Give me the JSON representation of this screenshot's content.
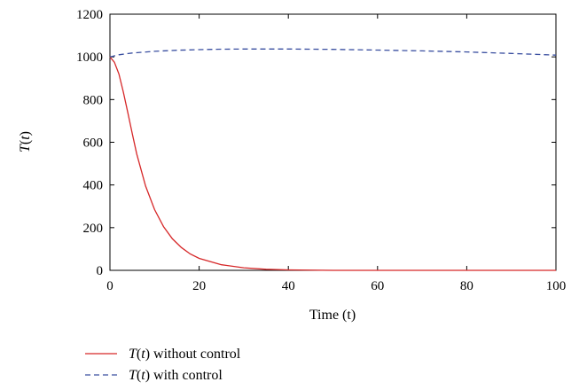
{
  "chart_data": {
    "type": "line",
    "title": "",
    "xlabel": "Time (t)",
    "ylabel": "T(t)",
    "xlim": [
      0,
      100
    ],
    "ylim": [
      0,
      1200
    ],
    "xticks": [
      0,
      20,
      40,
      60,
      80,
      100
    ],
    "yticks": [
      0,
      200,
      400,
      600,
      800,
      1000,
      1200
    ],
    "grid": false,
    "legend_position": "bottom-left, below plot",
    "series": [
      {
        "name": "T(t) without control",
        "legend_math": "T(t)",
        "legend_suffix": " without control",
        "color": "#d62728",
        "line_style": "solid",
        "x": [
          0,
          1,
          2,
          3,
          4,
          5,
          6,
          8,
          10,
          12,
          14,
          16,
          18,
          20,
          25,
          30,
          35,
          40,
          50,
          60,
          70,
          80,
          90,
          100
        ],
        "y": [
          1000,
          975,
          920,
          835,
          740,
          640,
          545,
          395,
          285,
          205,
          148,
          107,
          77,
          56,
          26,
          12,
          5,
          2,
          0,
          0,
          0,
          0,
          0,
          0
        ]
      },
      {
        "name": "T(t) with control",
        "legend_math": "T(t)",
        "legend_suffix": " with control",
        "color": "#3a4fa0",
        "line_style": "dashed",
        "x": [
          0,
          2,
          5,
          10,
          15,
          20,
          25,
          30,
          40,
          50,
          60,
          70,
          80,
          90,
          100
        ],
        "y": [
          1000,
          1010,
          1018,
          1026,
          1031,
          1034,
          1036,
          1037,
          1037,
          1035,
          1032,
          1028,
          1023,
          1016,
          1008
        ]
      }
    ]
  }
}
